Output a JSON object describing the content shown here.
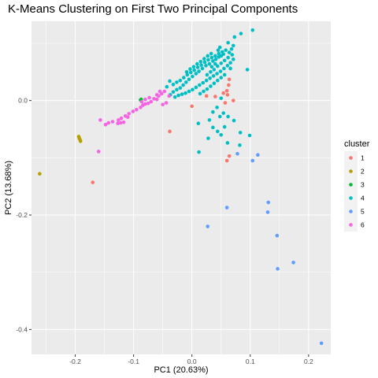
{
  "chart_data": {
    "type": "scatter",
    "title": "K-Means Clustering on First Two Principal Components",
    "xlabel": "PC1 (20.63%)",
    "ylabel": "PC2 (13.68%)",
    "xlim": [
      -0.275,
      0.238
    ],
    "ylim": [
      -0.4435,
      0.1385
    ],
    "xticks": [
      -0.2,
      -0.1,
      0.0,
      0.1,
      0.2
    ],
    "xtick_labels": [
      "-0.2",
      "-0.1",
      "0.0",
      "0.1",
      "0.2"
    ],
    "yticks": [
      -0.4,
      -0.2,
      0.0
    ],
    "ytick_labels": [
      "-0.4",
      "-0.2",
      "0.0"
    ],
    "grid": true,
    "legend_position": "right",
    "legend_title": "cluster",
    "background_color": "#ebebeb",
    "grid_color": "#ffffff",
    "series": [
      {
        "name": "1",
        "color": "#F8766D",
        "points": [
          [
            0.064,
            0.037
          ],
          [
            0.063,
            0.027
          ],
          [
            0.06,
            0.017
          ],
          [
            0.054,
            0.013
          ],
          [
            0.061,
            0.01
          ],
          [
            0.04,
            0.007
          ],
          [
            0.025,
            0.008
          ],
          [
            0.071,
            0.0
          ],
          [
            0.057,
            -0.004
          ],
          [
            0.0,
            -0.01
          ],
          [
            -0.038,
            -0.054
          ],
          [
            -0.17,
            -0.143
          ],
          [
            0.064,
            -0.097
          ],
          [
            0.06,
            -0.105
          ]
        ]
      },
      {
        "name": "2",
        "color": "#B79F00",
        "points": [
          [
            -0.261,
            -0.128
          ],
          [
            -0.194,
            -0.063
          ],
          [
            -0.193,
            -0.066
          ],
          [
            -0.192,
            -0.068
          ],
          [
            -0.191,
            -0.071
          ]
        ]
      },
      {
        "name": "3",
        "color": "#00BA38",
        "points": [
          [
            -0.087,
            0.002
          ],
          [
            -0.088,
            0.001
          ]
        ]
      },
      {
        "name": "4",
        "color": "#00BFC4",
        "points": [
          [
            0.104,
            0.123
          ],
          [
            0.084,
            0.117
          ],
          [
            0.073,
            0.111
          ],
          [
            0.062,
            0.101
          ],
          [
            0.048,
            0.093
          ],
          [
            0.054,
            0.081
          ],
          [
            0.05,
            0.078
          ],
          [
            0.046,
            0.076
          ],
          [
            0.041,
            0.072
          ],
          [
            0.036,
            0.069
          ],
          [
            0.03,
            0.064
          ],
          [
            0.024,
            0.061
          ],
          [
            0.018,
            0.056
          ],
          [
            0.012,
            0.051
          ],
          [
            0.007,
            0.047
          ],
          [
            0.001,
            0.042
          ],
          [
            -0.005,
            0.037
          ],
          [
            -0.01,
            0.032
          ],
          [
            -0.015,
            0.027
          ],
          [
            -0.02,
            0.022
          ],
          [
            -0.026,
            0.019
          ],
          [
            -0.032,
            0.015
          ],
          [
            -0.037,
            0.01
          ],
          [
            -0.043,
            0.024
          ],
          [
            -0.038,
            0.034
          ],
          [
            -0.032,
            0.028
          ],
          [
            -0.026,
            0.032
          ],
          [
            -0.02,
            0.035
          ],
          [
            -0.014,
            0.04
          ],
          [
            -0.008,
            0.045
          ],
          [
            -0.002,
            0.049
          ],
          [
            0.004,
            0.053
          ],
          [
            0.01,
            0.058
          ],
          [
            0.016,
            0.062
          ],
          [
            0.022,
            0.067
          ],
          [
            0.028,
            0.071
          ],
          [
            0.034,
            0.075
          ],
          [
            0.04,
            0.078
          ],
          [
            0.046,
            0.082
          ],
          [
            0.052,
            0.085
          ],
          [
            0.058,
            0.088
          ],
          [
            0.064,
            0.084
          ],
          [
            0.069,
            0.08
          ],
          [
            0.071,
            0.072
          ],
          [
            0.066,
            0.066
          ],
          [
            0.061,
            0.061
          ],
          [
            0.055,
            0.056
          ],
          [
            0.049,
            0.051
          ],
          [
            0.043,
            0.047
          ],
          [
            0.037,
            0.043
          ],
          [
            0.031,
            0.039
          ],
          [
            0.025,
            0.035
          ],
          [
            0.019,
            0.031
          ],
          [
            0.013,
            0.027
          ],
          [
            0.007,
            0.023
          ],
          [
            0.001,
            0.019
          ],
          [
            -0.005,
            0.016
          ],
          [
            -0.011,
            0.013
          ],
          [
            -0.017,
            0.011
          ],
          [
            -0.023,
            0.009
          ],
          [
            -0.029,
            0.006
          ],
          [
            0.026,
            0.045
          ],
          [
            0.032,
            0.05
          ],
          [
            0.038,
            0.054
          ],
          [
            0.044,
            0.06
          ],
          [
            0.05,
            0.065
          ],
          [
            0.056,
            0.07
          ],
          [
            0.062,
            0.075
          ],
          [
            0.056,
            0.045
          ],
          [
            0.05,
            0.04
          ],
          [
            0.044,
            0.035
          ],
          [
            0.038,
            0.03
          ],
          [
            0.032,
            0.025
          ],
          [
            0.026,
            0.02
          ],
          [
            0.02,
            0.016
          ],
          [
            0.014,
            0.012
          ],
          [
            0.095,
            0.054
          ],
          [
            0.05,
            0.004
          ],
          [
            0.043,
            -0.012
          ],
          [
            0.036,
            -0.02
          ],
          [
            0.054,
            -0.022
          ],
          [
            0.048,
            -0.028
          ],
          [
            0.03,
            -0.034
          ],
          [
            0.072,
            -0.035
          ],
          [
            0.062,
            -0.028
          ],
          [
            0.011,
            -0.04
          ],
          [
            0.036,
            -0.047
          ],
          [
            0.056,
            -0.046
          ],
          [
            0.044,
            -0.054
          ],
          [
            0.05,
            -0.06
          ],
          [
            0.028,
            -0.066
          ],
          [
            0.061,
            -0.074
          ],
          [
            0.099,
            -0.061
          ],
          [
            0.082,
            -0.078
          ],
          [
            0.012,
            -0.09
          ],
          [
            0.083,
            -0.056
          ],
          [
            0.045,
            0.088
          ],
          [
            0.033,
            0.082
          ],
          [
            0.027,
            0.078
          ],
          [
            0.021,
            0.073
          ],
          [
            0.015,
            0.068
          ],
          [
            0.009,
            0.064
          ],
          [
            0.003,
            0.059
          ],
          [
            -0.003,
            0.055
          ],
          [
            -0.009,
            0.05
          ],
          [
            0.068,
            0.09
          ],
          [
            0.071,
            0.096
          ],
          [
            0.066,
            0.056
          ],
          [
            0.04,
            0.064
          ],
          [
            0.034,
            0.059
          ]
        ]
      },
      {
        "name": "5",
        "color": "#619CFF",
        "points": [
          [
            0.078,
            -0.093
          ],
          [
            0.104,
            -0.105
          ],
          [
            0.113,
            -0.095
          ],
          [
            0.06,
            -0.187
          ],
          [
            0.131,
            -0.178
          ],
          [
            0.13,
            -0.195
          ],
          [
            0.027,
            -0.22
          ],
          [
            0.146,
            -0.236
          ],
          [
            0.174,
            -0.283
          ],
          [
            0.147,
            -0.294
          ],
          [
            0.222,
            -0.424
          ]
        ]
      },
      {
        "name": "6",
        "color": "#F564E3",
        "points": [
          [
            -0.047,
            0.016
          ],
          [
            -0.052,
            0.012
          ],
          [
            -0.057,
            0.008
          ],
          [
            -0.06,
            0.002
          ],
          [
            -0.065,
            0.003
          ],
          [
            -0.07,
            -0.002
          ],
          [
            -0.075,
            -0.005
          ],
          [
            -0.08,
            -0.006
          ],
          [
            -0.084,
            -0.008
          ],
          [
            -0.088,
            -0.012
          ],
          [
            -0.095,
            -0.016
          ],
          [
            -0.101,
            -0.019
          ],
          [
            -0.108,
            -0.023
          ],
          [
            -0.114,
            -0.027
          ],
          [
            -0.121,
            -0.031
          ],
          [
            -0.126,
            -0.034
          ],
          [
            -0.117,
            -0.038
          ],
          [
            -0.122,
            -0.039
          ],
          [
            -0.127,
            -0.04
          ],
          [
            -0.136,
            -0.037
          ],
          [
            -0.143,
            -0.039
          ],
          [
            -0.157,
            -0.034
          ],
          [
            -0.148,
            -0.042
          ],
          [
            -0.086,
            -0.002
          ],
          [
            -0.08,
            0.002
          ],
          [
            -0.073,
            0.005
          ],
          [
            -0.044,
            -0.004
          ],
          [
            -0.05,
            -0.007
          ],
          [
            -0.039,
            0.008
          ],
          [
            -0.055,
            0.016
          ],
          [
            -0.06,
            0.01
          ],
          [
            -0.11,
            -0.029
          ],
          [
            -0.16,
            -0.089
          ]
        ]
      }
    ]
  }
}
